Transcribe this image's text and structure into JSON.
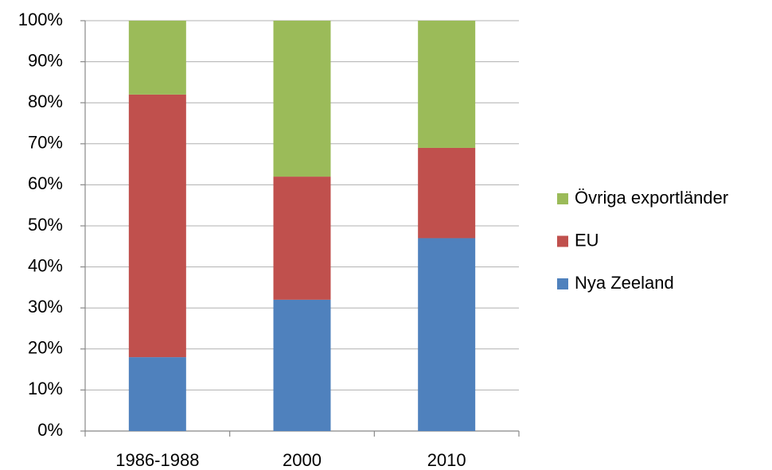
{
  "chart_data": {
    "type": "stacked_bar",
    "categories": [
      "1986-1988",
      "2000",
      "2010"
    ],
    "series": [
      {
        "name": "Nya Zeeland",
        "color": "#4f81bd",
        "values": [
          18,
          32,
          47
        ]
      },
      {
        "name": "EU",
        "color": "#c0504d",
        "values": [
          64,
          30,
          22
        ]
      },
      {
        "name": "Övriga exportländer",
        "color": "#9bbb59",
        "values": [
          18,
          38,
          31
        ]
      }
    ],
    "ylim": [
      0,
      100
    ],
    "yticks": [
      {
        "value": 0,
        "label": "0%"
      },
      {
        "value": 10,
        "label": "10%"
      },
      {
        "value": 20,
        "label": "20%"
      },
      {
        "value": 30,
        "label": "30%"
      },
      {
        "value": 40,
        "label": "40%"
      },
      {
        "value": 50,
        "label": "50%"
      },
      {
        "value": 60,
        "label": "60%"
      },
      {
        "value": 70,
        "label": "70%"
      },
      {
        "value": 80,
        "label": "80%"
      },
      {
        "value": 90,
        "label": "90%"
      },
      {
        "value": 100,
        "label": "100%"
      }
    ],
    "grid": true,
    "legend": "right"
  }
}
